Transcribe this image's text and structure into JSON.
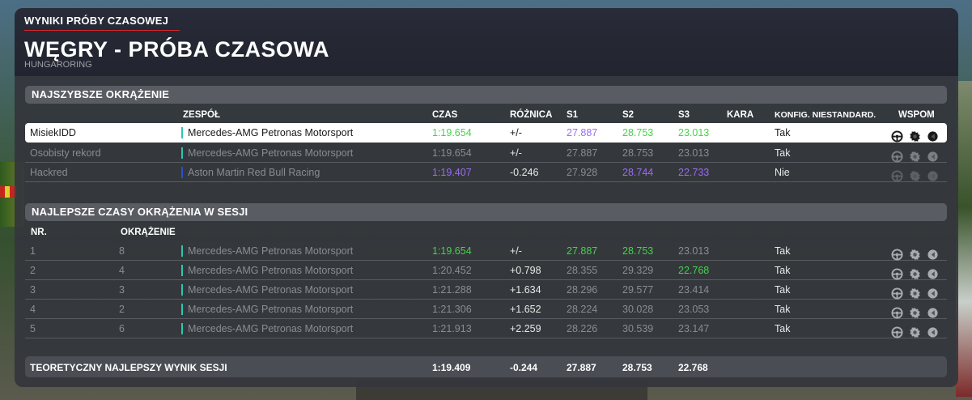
{
  "header": {
    "supertitle": "WYNIKI PRÓBY CZASOWEJ",
    "title": "WĘGRY - PRÓBA CZASOWA",
    "subtitle": "HUNGARORING"
  },
  "fastest": {
    "section_title": "NAJSZYBSZE OKRĄŻENIE",
    "columns": {
      "team": "ZESPÓŁ",
      "time": "CZAS",
      "diff": "RÓŻNICA",
      "s1": "S1",
      "s2": "S2",
      "s3": "S3",
      "penalty": "KARA",
      "config": "KONFIG. NIESTANDARD.",
      "assists": "WSPOM"
    },
    "rows": [
      {
        "name": "MisiekIDD",
        "team": "Mercedes-AMG Petronas Motorsport",
        "time": "1:19.654",
        "diff": "+/-",
        "s1": "27.887",
        "s2": "28.753",
        "s3": "23.013",
        "penalty": "",
        "config": "Tak"
      },
      {
        "name": "Osobisty rekord",
        "team": "Mercedes-AMG Petronas Motorsport",
        "time": "1:19.654",
        "diff": "+/-",
        "s1": "27.887",
        "s2": "28.753",
        "s3": "23.013",
        "penalty": "",
        "config": "Tak"
      },
      {
        "name": "Hackred",
        "team": "Aston Martin Red Bull Racing",
        "time": "1:19.407",
        "diff": "-0.246",
        "s1": "27.928",
        "s2": "28.744",
        "s3": "22.733",
        "penalty": "",
        "config": "Nie"
      }
    ]
  },
  "session": {
    "section_title": "NAJLEPSZE CZASY OKRĄŻENIA W SESJI",
    "columns": {
      "no": "NR.",
      "lap": "OKRĄŻENIE"
    },
    "rows": [
      {
        "no": "1",
        "lap": "8",
        "team": "Mercedes-AMG Petronas Motorsport",
        "time": "1:19.654",
        "diff": "+/-",
        "s1": "27.887",
        "s2": "28.753",
        "s3": "23.013",
        "config": "Tak"
      },
      {
        "no": "2",
        "lap": "4",
        "team": "Mercedes-AMG Petronas Motorsport",
        "time": "1:20.452",
        "diff": "+0.798",
        "s1": "28.355",
        "s2": "29.329",
        "s3": "22.768",
        "config": "Tak"
      },
      {
        "no": "3",
        "lap": "3",
        "team": "Mercedes-AMG Petronas Motorsport",
        "time": "1:21.288",
        "diff": "+1.634",
        "s1": "28.296",
        "s2": "29.577",
        "s3": "23.414",
        "config": "Tak"
      },
      {
        "no": "4",
        "lap": "2",
        "team": "Mercedes-AMG Petronas Motorsport",
        "time": "1:21.306",
        "diff": "+1.652",
        "s1": "28.224",
        "s2": "30.028",
        "s3": "23.053",
        "config": "Tak"
      },
      {
        "no": "5",
        "lap": "6",
        "team": "Mercedes-AMG Petronas Motorsport",
        "time": "1:21.913",
        "diff": "+2.259",
        "s1": "28.226",
        "s2": "30.539",
        "s3": "23.147",
        "config": "Tak"
      }
    ]
  },
  "theoretical": {
    "label": "TEORETYCZNY NAJLEPSZY WYNIK SESJI",
    "time": "1:19.409",
    "diff": "-0.244",
    "s1": "27.887",
    "s2": "28.753",
    "s3": "22.768"
  },
  "icons": {
    "assist1": "steering-assist-icon",
    "assist2": "gear-icon",
    "assist3": "brake-assist-icon"
  },
  "colors": {
    "green": "#47d14d",
    "purple": "#9b6cf0",
    "mercedes": "#2dc6b4",
    "redbull": "#2a4fd0",
    "accent_red": "#d6262a"
  }
}
